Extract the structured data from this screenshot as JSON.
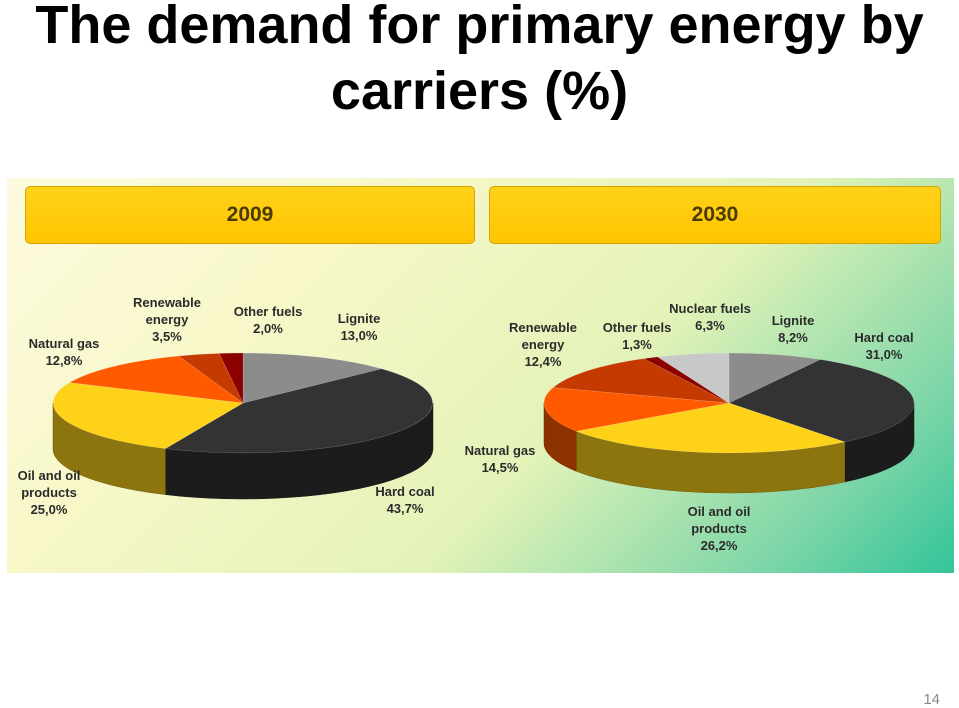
{
  "slide": {
    "title_line1": "The demand for primary energy by",
    "title_line2": "carriers (%)",
    "page_number": "14"
  },
  "chart_data": [
    {
      "type": "pie",
      "title": "2009",
      "slices": [
        {
          "label": "Lignite",
          "value": 13.0,
          "value_label": "13,0%",
          "color": "#8c8c8c"
        },
        {
          "label": "Hard coal",
          "value": 43.7,
          "value_label": "43,7%",
          "color": "#333333"
        },
        {
          "label": "Oil and oil products",
          "value": 25.0,
          "value_label": "25,0%",
          "color": "#ffd21a"
        },
        {
          "label": "Natural gas",
          "value": 12.8,
          "value_label": "12,8%",
          "color": "#ff5a00"
        },
        {
          "label": "Renewable energy",
          "value": 3.5,
          "value_label": "3,5%",
          "color": "#c43a00"
        },
        {
          "label": "Other fuels",
          "value": 2.0,
          "value_label": "2,0%",
          "color": "#8c0000"
        }
      ]
    },
    {
      "type": "pie",
      "title": "2030",
      "slices": [
        {
          "label": "Lignite",
          "value": 8.2,
          "value_label": "8,2%",
          "color": "#8c8c8c"
        },
        {
          "label": "Hard coal",
          "value": 31.0,
          "value_label": "31,0%",
          "color": "#333333"
        },
        {
          "label": "Oil and oil products",
          "value": 26.2,
          "value_label": "26,2%",
          "color": "#ffd21a"
        },
        {
          "label": "Natural gas",
          "value": 14.5,
          "value_label": "14,5%",
          "color": "#ff5a00"
        },
        {
          "label": "Renewable energy",
          "value": 12.4,
          "value_label": "12,4%",
          "color": "#c43a00"
        },
        {
          "label": "Other fuels",
          "value": 1.3,
          "value_label": "1,3%",
          "color": "#8c0000"
        },
        {
          "label": "Nuclear fuels",
          "value": 6.3,
          "value_label": "6,3%",
          "color": "#c8c8c8"
        }
      ]
    }
  ]
}
